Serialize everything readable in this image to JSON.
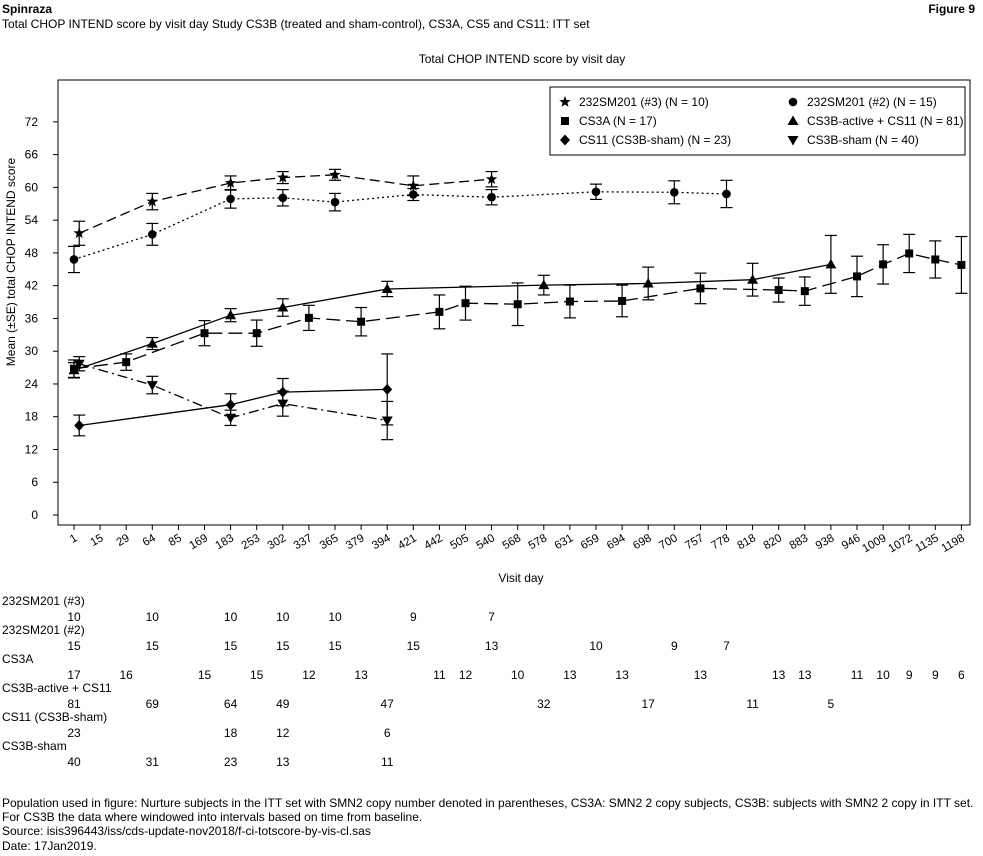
{
  "header": {
    "product": "Spinraza",
    "figure": "Figure 9",
    "subtitle": "Total CHOP INTEND score by visit day Study CS3B (treated and sham-control), CS3A, CS5 and CS11: ITT set"
  },
  "chart_data": {
    "type": "line",
    "title": "Total CHOP INTEND score by visit day",
    "xlabel": "Visit day",
    "ylabel": "Mean (±SE) total CHOP INTEND score",
    "categories": [
      "1",
      "15",
      "29",
      "64",
      "85",
      "169",
      "183",
      "253",
      "302",
      "337",
      "365",
      "379",
      "394",
      "421",
      "442",
      "505",
      "540",
      "568",
      "578",
      "631",
      "659",
      "694",
      "698",
      "700",
      "757",
      "778",
      "818",
      "820",
      "883",
      "938",
      "946",
      "1009",
      "1072",
      "1135",
      "1198"
    ],
    "yticks": [
      0,
      6,
      12,
      18,
      24,
      30,
      36,
      42,
      48,
      54,
      60,
      66,
      72
    ],
    "ylim": [
      -2,
      80
    ],
    "grid": false,
    "legend_position": "top-right",
    "series": [
      {
        "name": "232SM201 (#3) (N = 10)",
        "marker": "star",
        "dash": "10,5",
        "points": [
          {
            "x": 0.2,
            "y": 51.6,
            "se": 2.2
          },
          {
            "x": 3,
            "y": 57.4,
            "se": 1.5
          },
          {
            "x": 6,
            "y": 60.8,
            "se": 1.3
          },
          {
            "x": 8,
            "y": 61.8,
            "se": 1.1
          },
          {
            "x": 10,
            "y": 62.3,
            "se": 1.0
          },
          {
            "x": 13,
            "y": 60.3,
            "se": 1.8
          },
          {
            "x": 16,
            "y": 61.5,
            "se": 1.4
          }
        ]
      },
      {
        "name": "232SM201 (#2) (N = 15)",
        "marker": "circle",
        "dash": "2,3",
        "points": [
          {
            "x": 0,
            "y": 46.8,
            "se": 2.4
          },
          {
            "x": 3,
            "y": 51.4,
            "se": 2.0
          },
          {
            "x": 6,
            "y": 57.9,
            "se": 1.7
          },
          {
            "x": 8,
            "y": 58.1,
            "se": 1.5
          },
          {
            "x": 10,
            "y": 57.3,
            "se": 1.6
          },
          {
            "x": 13,
            "y": 58.7,
            "se": 1.1
          },
          {
            "x": 16,
            "y": 58.2,
            "se": 1.4
          },
          {
            "x": 20,
            "y": 59.2,
            "se": 1.4
          },
          {
            "x": 23,
            "y": 59.1,
            "se": 2.1
          },
          {
            "x": 25,
            "y": 58.8,
            "se": 2.5
          }
        ]
      },
      {
        "name": "CS3A (N = 17)",
        "marker": "square",
        "dash": "14,6",
        "points": [
          {
            "x": 0,
            "y": 26.8,
            "se": 1.6
          },
          {
            "x": 2,
            "y": 28.0,
            "se": 1.5
          },
          {
            "x": 5,
            "y": 33.3,
            "se": 2.3
          },
          {
            "x": 7,
            "y": 33.3,
            "se": 2.4
          },
          {
            "x": 9,
            "y": 36.1,
            "se": 2.3
          },
          {
            "x": 11,
            "y": 35.4,
            "se": 2.6
          },
          {
            "x": 14,
            "y": 37.2,
            "se": 3.1
          },
          {
            "x": 15,
            "y": 38.8,
            "se": 3.1
          },
          {
            "x": 17,
            "y": 38.6,
            "se": 3.9
          },
          {
            "x": 19,
            "y": 39.1,
            "se": 3.0
          },
          {
            "x": 21,
            "y": 39.2,
            "se": 2.9
          },
          {
            "x": 24,
            "y": 41.5,
            "se": 2.8
          },
          {
            "x": 27,
            "y": 41.2,
            "se": 2.2
          },
          {
            "x": 28,
            "y": 41.0,
            "se": 2.6
          },
          {
            "x": 30,
            "y": 43.7,
            "se": 3.7
          },
          {
            "x": 31,
            "y": 45.9,
            "se": 3.6
          },
          {
            "x": 32,
            "y": 47.9,
            "se": 3.5
          },
          {
            "x": 33,
            "y": 46.8,
            "se": 3.4
          },
          {
            "x": 34,
            "y": 45.8,
            "se": 5.2
          }
        ]
      },
      {
        "name": "CS3B-active + CS11 (N = 81)",
        "marker": "triangle-up",
        "dash": "",
        "points": [
          {
            "x": 0,
            "y": 26.5,
            "se": 1.4
          },
          {
            "x": 3,
            "y": 31.4,
            "se": 1.1
          },
          {
            "x": 6,
            "y": 36.6,
            "se": 1.2
          },
          {
            "x": 8,
            "y": 38.0,
            "se": 1.6
          },
          {
            "x": 12,
            "y": 41.4,
            "se": 1.4
          },
          {
            "x": 18,
            "y": 42.1,
            "se": 1.8
          },
          {
            "x": 22,
            "y": 42.4,
            "se": 3.0
          },
          {
            "x": 26,
            "y": 43.1,
            "se": 3.0
          },
          {
            "x": 29,
            "y": 45.9,
            "se": 5.3
          }
        ]
      },
      {
        "name": "CS11 (CS3B-sham) (N = 23)",
        "marker": "diamond",
        "dash": "",
        "points": [
          {
            "x": 0.2,
            "y": 16.4,
            "se": 1.9
          },
          {
            "x": 6,
            "y": 20.2,
            "se": 2.0
          },
          {
            "x": 8,
            "y": 22.5,
            "se": 2.5
          },
          {
            "x": 12,
            "y": 23.0,
            "se": 6.5
          }
        ]
      },
      {
        "name": "CS3B-sham (N = 40)",
        "marker": "triangle-down",
        "dash": "10,4,2,4",
        "points": [
          {
            "x": 0.2,
            "y": 27.7,
            "se": 1.3
          },
          {
            "x": 3,
            "y": 23.8,
            "se": 1.6
          },
          {
            "x": 6,
            "y": 17.8,
            "se": 1.4
          },
          {
            "x": 8,
            "y": 20.4,
            "se": 2.3
          },
          {
            "x": 12,
            "y": 17.3,
            "se": 3.5
          }
        ]
      }
    ]
  },
  "n_table": [
    {
      "label": "232SM201 (#3)",
      "counts": [
        {
          "x": 0,
          "v": "10"
        },
        {
          "x": 3,
          "v": "10"
        },
        {
          "x": 6,
          "v": "10"
        },
        {
          "x": 8,
          "v": "10"
        },
        {
          "x": 10,
          "v": "10"
        },
        {
          "x": 13,
          "v": "9"
        },
        {
          "x": 16,
          "v": "7"
        }
      ]
    },
    {
      "label": "232SM201 (#2)",
      "counts": [
        {
          "x": 0,
          "v": "15"
        },
        {
          "x": 3,
          "v": "15"
        },
        {
          "x": 6,
          "v": "15"
        },
        {
          "x": 8,
          "v": "15"
        },
        {
          "x": 10,
          "v": "15"
        },
        {
          "x": 13,
          "v": "15"
        },
        {
          "x": 16,
          "v": "13"
        },
        {
          "x": 20,
          "v": "10"
        },
        {
          "x": 23,
          "v": "9"
        },
        {
          "x": 25,
          "v": "7"
        }
      ]
    },
    {
      "label": "CS3A",
      "counts": [
        {
          "x": 0,
          "v": "17"
        },
        {
          "x": 2,
          "v": "16"
        },
        {
          "x": 5,
          "v": "15"
        },
        {
          "x": 7,
          "v": "15"
        },
        {
          "x": 9,
          "v": "12"
        },
        {
          "x": 11,
          "v": "13"
        },
        {
          "x": 14,
          "v": "11"
        },
        {
          "x": 15,
          "v": "12"
        },
        {
          "x": 17,
          "v": "10"
        },
        {
          "x": 19,
          "v": "13"
        },
        {
          "x": 21,
          "v": "13"
        },
        {
          "x": 24,
          "v": "13"
        },
        {
          "x": 27,
          "v": "13"
        },
        {
          "x": 28,
          "v": "13"
        },
        {
          "x": 30,
          "v": "11"
        },
        {
          "x": 31,
          "v": "10"
        },
        {
          "x": 32,
          "v": "9"
        },
        {
          "x": 33,
          "v": "9"
        },
        {
          "x": 34,
          "v": "6"
        }
      ]
    },
    {
      "label": "CS3B-active + CS11",
      "counts": [
        {
          "x": 0,
          "v": "81"
        },
        {
          "x": 3,
          "v": "69"
        },
        {
          "x": 6,
          "v": "64"
        },
        {
          "x": 8,
          "v": "49"
        },
        {
          "x": 12,
          "v": "47"
        },
        {
          "x": 18,
          "v": "32"
        },
        {
          "x": 22,
          "v": "17"
        },
        {
          "x": 26,
          "v": "11"
        },
        {
          "x": 29,
          "v": "5"
        }
      ]
    },
    {
      "label": "CS11 (CS3B-sham)",
      "counts": [
        {
          "x": 0,
          "v": "23"
        },
        {
          "x": 6,
          "v": "18"
        },
        {
          "x": 8,
          "v": "12"
        },
        {
          "x": 12,
          "v": "6"
        }
      ]
    },
    {
      "label": "CS3B-sham",
      "counts": [
        {
          "x": 0,
          "v": "40"
        },
        {
          "x": 3,
          "v": "31"
        },
        {
          "x": 6,
          "v": "23"
        },
        {
          "x": 8,
          "v": "13"
        },
        {
          "x": 12,
          "v": "11"
        }
      ]
    }
  ],
  "footnotes": {
    "population": "Population used in figure: Nurture subjects in the ITT set with SMN2 copy number denoted in parentheses, CS3A: SMN2 2 copy subjects, CS3B: subjects with SMN2 2 copy in ITT set. For CS3B the data where windowed into intervals based on time from baseline.",
    "source": "Source: isis396443/iss/cds-update-nov2018/f-ci-totscore-by-vis-cl.sas",
    "date": "Date: 17Jan2019."
  }
}
